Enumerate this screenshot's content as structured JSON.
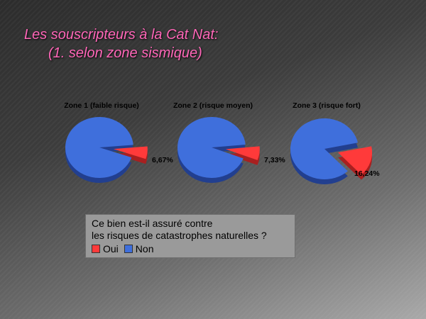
{
  "title": {
    "line1": "Les souscripteurs à la Cat Nat:",
    "line2": "(1. selon zone sismique)"
  },
  "colors": {
    "oui": "#ff3a3a",
    "non": "#3f6fdc",
    "title": "#ff66b8"
  },
  "chart_data": {
    "type": "pie",
    "title": "Les souscripteurs à la Cat Nat: (1. selon zone sismique)",
    "question": [
      "Ce bien est-il assuré contre",
      "les risques de catastrophes naturelles ?"
    ],
    "legend": [
      {
        "label": "Oui",
        "color": "#ff3a3a"
      },
      {
        "label": "Non",
        "color": "#3f6fdc"
      }
    ],
    "legend_placement": "bottom",
    "charts": [
      {
        "title": "Zone 1 (faible risque)",
        "oui": 6.67,
        "non": 93.33,
        "oui_label": "6,67%"
      },
      {
        "title": "Zone 2 (risque moyen)",
        "oui": 7.33,
        "non": 92.67,
        "oui_label": "7,33%"
      },
      {
        "title": "Zone 3 (risque fort)",
        "oui": 16.24,
        "non": 83.76,
        "oui_label": "16,24%"
      }
    ]
  }
}
